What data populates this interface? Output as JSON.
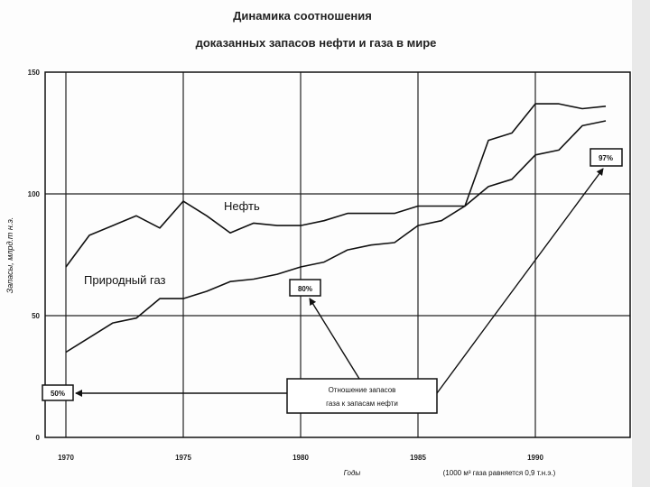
{
  "chart_data": {
    "type": "line",
    "title_line1": "Динамика соотношения",
    "title_line2": "доказанных запасов нефти и газа в мире",
    "ylabel": "Запасы, млрд.т н.э.",
    "xlabel": "Годы",
    "xnote": "(1000 м³ газа равняется 0,9 т.н.э.)",
    "xlim": [
      1970,
      1993
    ],
    "ylim": [
      0,
      150
    ],
    "xticks": [
      1970,
      1975,
      1980,
      1985,
      1990
    ],
    "xtick_labels": [
      "1970",
      "1975",
      "1980",
      "1985",
      "1990"
    ],
    "yticks": [
      0,
      50,
      100,
      150
    ],
    "ytick_labels": [
      "0",
      "50",
      "100",
      "150"
    ],
    "grid": true,
    "series": [
      {
        "name": "Нефть",
        "x": [
          1970,
          1971,
          1972,
          1973,
          1974,
          1975,
          1976,
          1977,
          1978,
          1979,
          1980,
          1981,
          1982,
          1983,
          1984,
          1985,
          1986,
          1987,
          1988,
          1989,
          1990,
          1991,
          1992,
          1993
        ],
        "y": [
          70,
          83,
          87,
          91,
          86,
          97,
          91,
          84,
          88,
          87,
          87,
          89,
          92,
          92,
          92,
          95,
          95,
          95,
          122,
          125,
          137,
          137,
          135,
          136
        ]
      },
      {
        "name": "Природный газ",
        "x": [
          1970,
          1971,
          1972,
          1973,
          1974,
          1975,
          1976,
          1977,
          1978,
          1979,
          1980,
          1981,
          1982,
          1983,
          1984,
          1985,
          1986,
          1987,
          1988,
          1989,
          1990,
          1991,
          1992,
          1993
        ],
        "y": [
          35,
          41,
          47,
          49,
          57,
          57,
          60,
          64,
          65,
          67,
          70,
          72,
          77,
          79,
          80,
          87,
          89,
          95,
          103,
          106,
          116,
          118,
          128,
          130
        ]
      }
    ],
    "annotations": {
      "box_50": "50%",
      "box_80": "80%",
      "box_97": "97%",
      "note_line1": "Отношение запасов",
      "note_line2": "газа к запасам нефти"
    }
  }
}
